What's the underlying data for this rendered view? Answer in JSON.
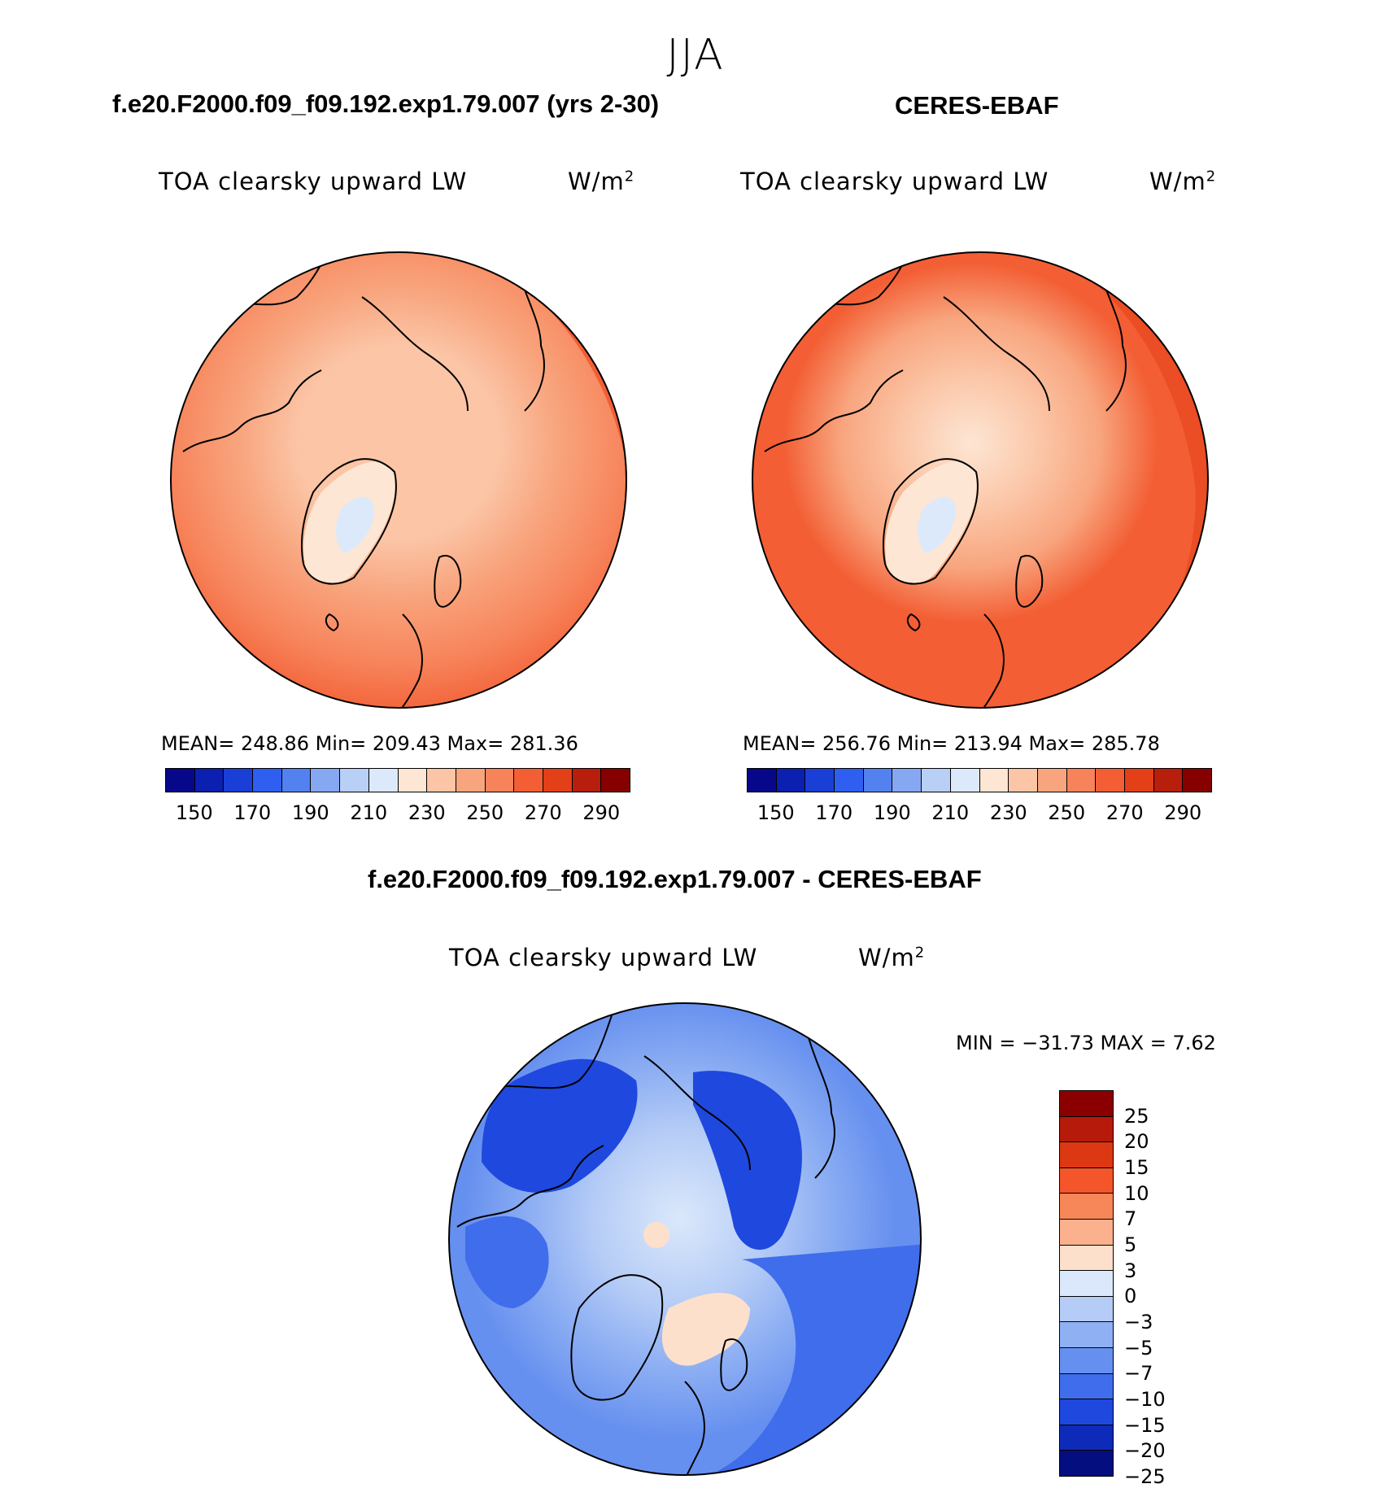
{
  "season": "JJA",
  "panels": [
    {
      "title": "f.e20.F2000.f09_f09.192.exp1.79.007 (yrs 2-30)",
      "variable": "TOA clearsky upward LW",
      "units_base": "W/m",
      "units_exp": "2",
      "stats": "MEAN= 248.86   Min= 209.43   Max= 281.36"
    },
    {
      "title": "CERES-EBAF",
      "variable": "TOA clearsky upward LW",
      "units_base": "W/m",
      "units_exp": "2",
      "stats": "MEAN= 256.76   Min= 213.94   Max= 285.78"
    }
  ],
  "abs_colorbar": {
    "labels": [
      "150",
      "170",
      "190",
      "210",
      "230",
      "250",
      "270",
      "290"
    ],
    "colors": [
      "#07078a",
      "#0b1fb0",
      "#1a3fd6",
      "#2e5ff0",
      "#5481f0",
      "#86a8f2",
      "#b8cff6",
      "#dce9fb",
      "#fde6d4",
      "#fbc5a6",
      "#f8a57e",
      "#f7835a",
      "#f35e34",
      "#e33f18",
      "#b81e0c",
      "#860000"
    ]
  },
  "diff": {
    "title": "f.e20.F2000.f09_f09.192.exp1.79.007 - CERES-EBAF",
    "variable": "TOA clearsky upward LW",
    "units_base": "W/m",
    "units_exp": "2",
    "stats": "MIN = −31.73 MAX =     7.62",
    "colorbar_labels": [
      "25",
      "20",
      "15",
      "10",
      "7",
      "5",
      "3",
      "0",
      "−3",
      "−5",
      "−7",
      "−10",
      "−15",
      "−20",
      "−25"
    ],
    "colorbar_colors": [
      "#8a0000",
      "#b51a0a",
      "#dc3814",
      "#f5552a",
      "#f78659",
      "#fbb08e",
      "#fde0cc",
      "#dbe8fb",
      "#b5ccf6",
      "#8fb0f3",
      "#6690ef",
      "#3f6dec",
      "#1f48de",
      "#0e2ab8",
      "#050e7e"
    ]
  }
}
